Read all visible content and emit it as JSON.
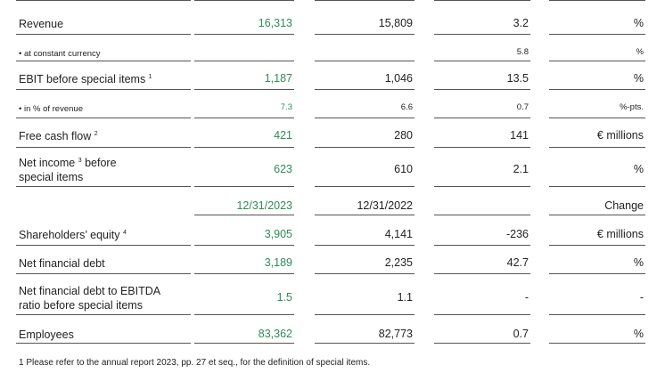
{
  "rows": [
    {
      "label": "Revenue",
      "sup": "",
      "v1": "16,313",
      "v2": "15,809",
      "v3": "3.2",
      "unit": "%"
    },
    {
      "label": "• at constant currency",
      "sup": "",
      "v1": "",
      "v2": "",
      "v3": "5.8",
      "unit": "%"
    },
    {
      "label": "EBIT before special items ",
      "sup": "1",
      "v1": "1,187",
      "v2": "1,046",
      "v3": "13.5",
      "unit": "%"
    },
    {
      "label": "• in % of revenue",
      "sup": "",
      "v1": "7.3",
      "v2": "6.6",
      "v3": "0.7",
      "unit": "%-pts."
    },
    {
      "label": "Free cash flow ",
      "sup": "2",
      "v1": "421",
      "v2": "280",
      "v3": "141",
      "unit": "€ millions"
    },
    {
      "label_line1": "Net income ",
      "sup": "3",
      "label_line1_rest": " before",
      "label_line2": "special items",
      "v1": "623",
      "v2": "610",
      "v3": "2.1",
      "unit": "%"
    },
    {
      "v1": "12/31/2023",
      "v2": "12/31/2022",
      "unit": "Change"
    },
    {
      "label": "Shareholders’ equity ",
      "sup": "4",
      "v1": "3,905",
      "v2": "4,141",
      "v3": "-236",
      "unit": "€ millions"
    },
    {
      "label": "Net financial debt",
      "sup": "",
      "v1": "3,189",
      "v2": "2,235",
      "v3": "42.7",
      "unit": "%"
    },
    {
      "label_line1": "Net financial debt to EBITDA",
      "label_line2": "ratio before special items",
      "v1": "1.5",
      "v2": "1.1",
      "v3": "-",
      "unit": "-"
    },
    {
      "label": "Employees",
      "sup": "",
      "v1": "83,362",
      "v2": "82,773",
      "v3": "0.7",
      "unit": "%"
    }
  ],
  "footnote": "1 Please refer to the annual report 2023, pp. 27 et seq., for the definition of special items."
}
